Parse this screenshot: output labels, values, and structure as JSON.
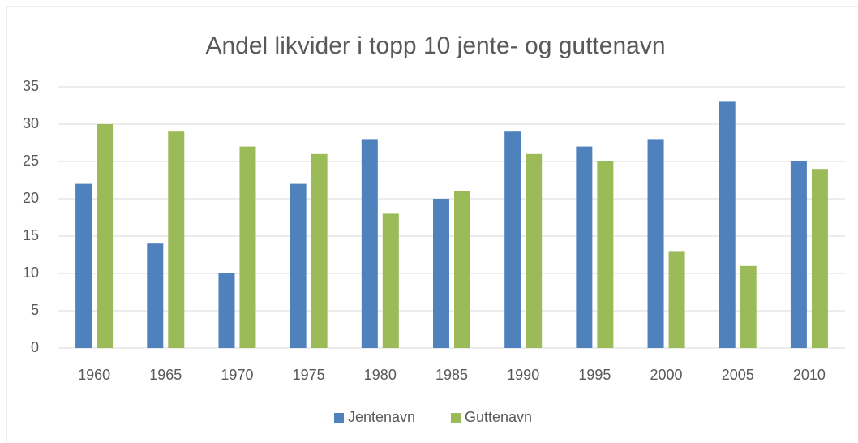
{
  "chart_data": {
    "type": "bar",
    "title": "Andel likvider i topp 10 jente- og guttenavn",
    "categories": [
      "1960",
      "1965",
      "1970",
      "1975",
      "1980",
      "1985",
      "1990",
      "1995",
      "2000",
      "2005",
      "2010"
    ],
    "series": [
      {
        "name": "Jentenavn",
        "color": "#4f81bd",
        "values": [
          22,
          14,
          10,
          22,
          28,
          20,
          29,
          27,
          28,
          33,
          25
        ]
      },
      {
        "name": "Guttenavn",
        "color": "#9bbb59",
        "values": [
          30,
          29,
          27,
          26,
          18,
          21,
          26,
          25,
          13,
          11,
          24
        ]
      }
    ],
    "ylim": [
      0,
      35
    ],
    "yticks": [
      0,
      5,
      10,
      15,
      20,
      25,
      30,
      35
    ],
    "grid": true,
    "legend": "bottom"
  }
}
